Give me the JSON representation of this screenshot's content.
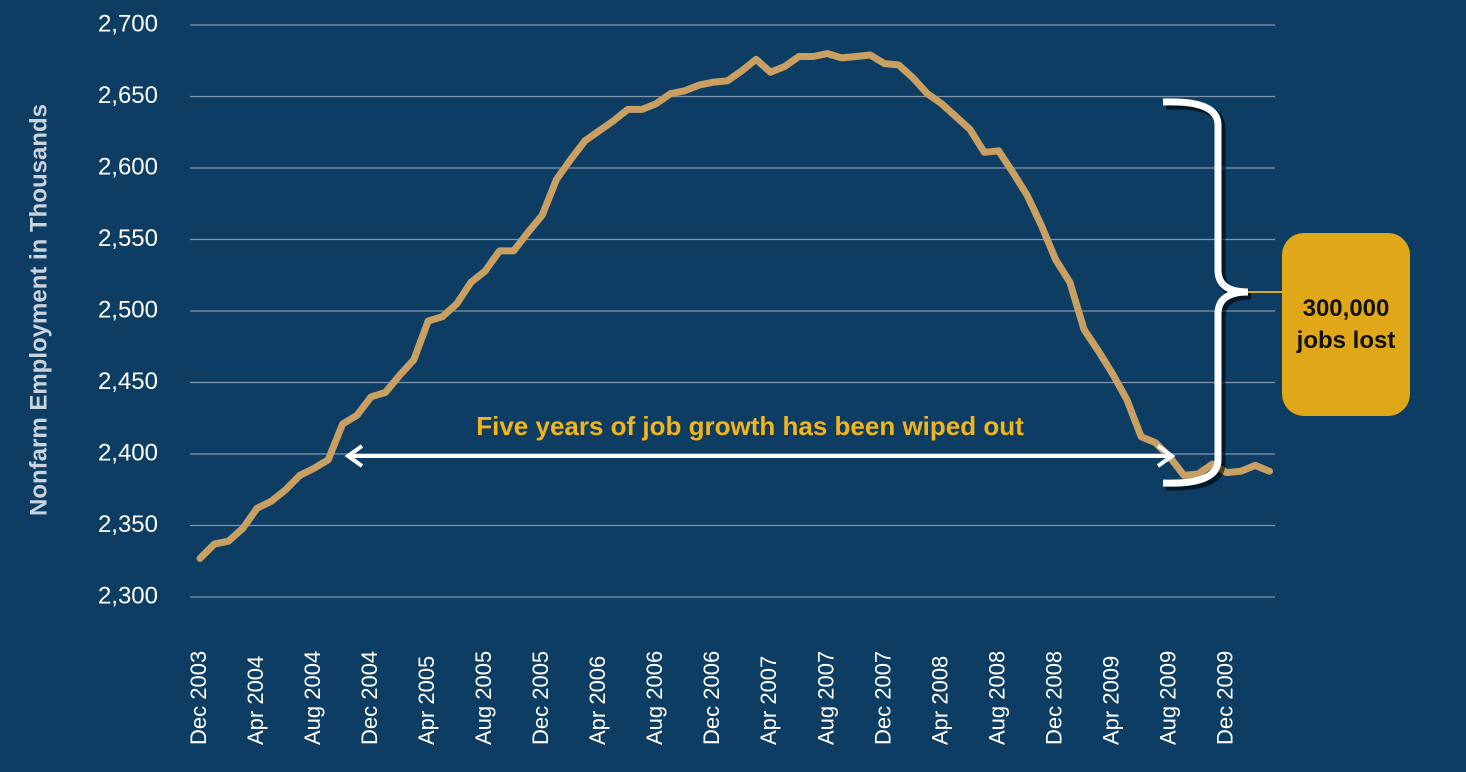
{
  "chart_data": {
    "type": "line",
    "y_label": "Nonfarm Employment in Thousands",
    "annotation_arrow": "Five years of job growth has been wiped out",
    "annotation_box": "300,000 jobs lost",
    "categories": [
      "Dec 2003",
      null,
      null,
      null,
      "Apr 2004",
      null,
      null,
      null,
      "Aug 2004",
      null,
      null,
      null,
      "Dec 2004",
      null,
      null,
      null,
      "Apr 2005",
      null,
      null,
      null,
      "Aug 2005",
      null,
      null,
      null,
      "Dec 2005",
      null,
      null,
      null,
      "Apr 2006",
      null,
      null,
      null,
      "Aug 2006",
      null,
      null,
      null,
      "Dec 2006",
      null,
      null,
      null,
      "Apr 2007",
      null,
      null,
      null,
      "Aug 2007",
      null,
      null,
      null,
      "Dec 2007",
      null,
      null,
      null,
      "Apr 2008",
      null,
      null,
      null,
      "Aug 2008",
      null,
      null,
      null,
      "Dec 2008",
      null,
      null,
      null,
      "Apr 2009",
      null,
      null,
      null,
      "Aug 2009",
      null,
      null,
      null,
      "Dec 2009",
      null,
      null,
      null
    ],
    "series": [
      {
        "name": "Nonfarm Employment",
        "color": "#c9a062",
        "values": [
          2327,
          2337,
          2339,
          2348,
          2362,
          2367,
          2375,
          2385,
          2390,
          2396,
          2421,
          2427,
          2440,
          2443,
          2455,
          2466,
          2493,
          2496,
          2505,
          2520,
          2528,
          2542,
          2542,
          2555,
          2567,
          2592,
          2606,
          2619,
          2626,
          2633,
          2641,
          2641,
          2645,
          2652,
          2654,
          2658,
          2660,
          2661,
          2668,
          2676,
          2667,
          2671,
          2678,
          2678,
          2680,
          2677,
          2678,
          2679,
          2673,
          2672,
          2663,
          2652,
          2645,
          2636,
          2627,
          2611,
          2612,
          2597,
          2581,
          2560,
          2536,
          2520,
          2487,
          2472,
          2456,
          2438,
          2412,
          2408,
          2398,
          2385,
          2386,
          2393,
          2387,
          2388,
          2392,
          2388
        ]
      }
    ],
    "ylim": [
      2300,
      2700
    ],
    "yticks": [
      {
        "value": 2300,
        "label": "2,300"
      },
      {
        "value": 2350,
        "label": "2,350"
      },
      {
        "value": 2400,
        "label": "2,400"
      },
      {
        "value": 2450,
        "label": "2,450"
      },
      {
        "value": 2500,
        "label": "2,500"
      },
      {
        "value": 2550,
        "label": "2,550"
      },
      {
        "value": 2600,
        "label": "2,600"
      },
      {
        "value": 2650,
        "label": "2,650"
      },
      {
        "value": 2700,
        "label": "2,700"
      }
    ],
    "grid": true
  }
}
